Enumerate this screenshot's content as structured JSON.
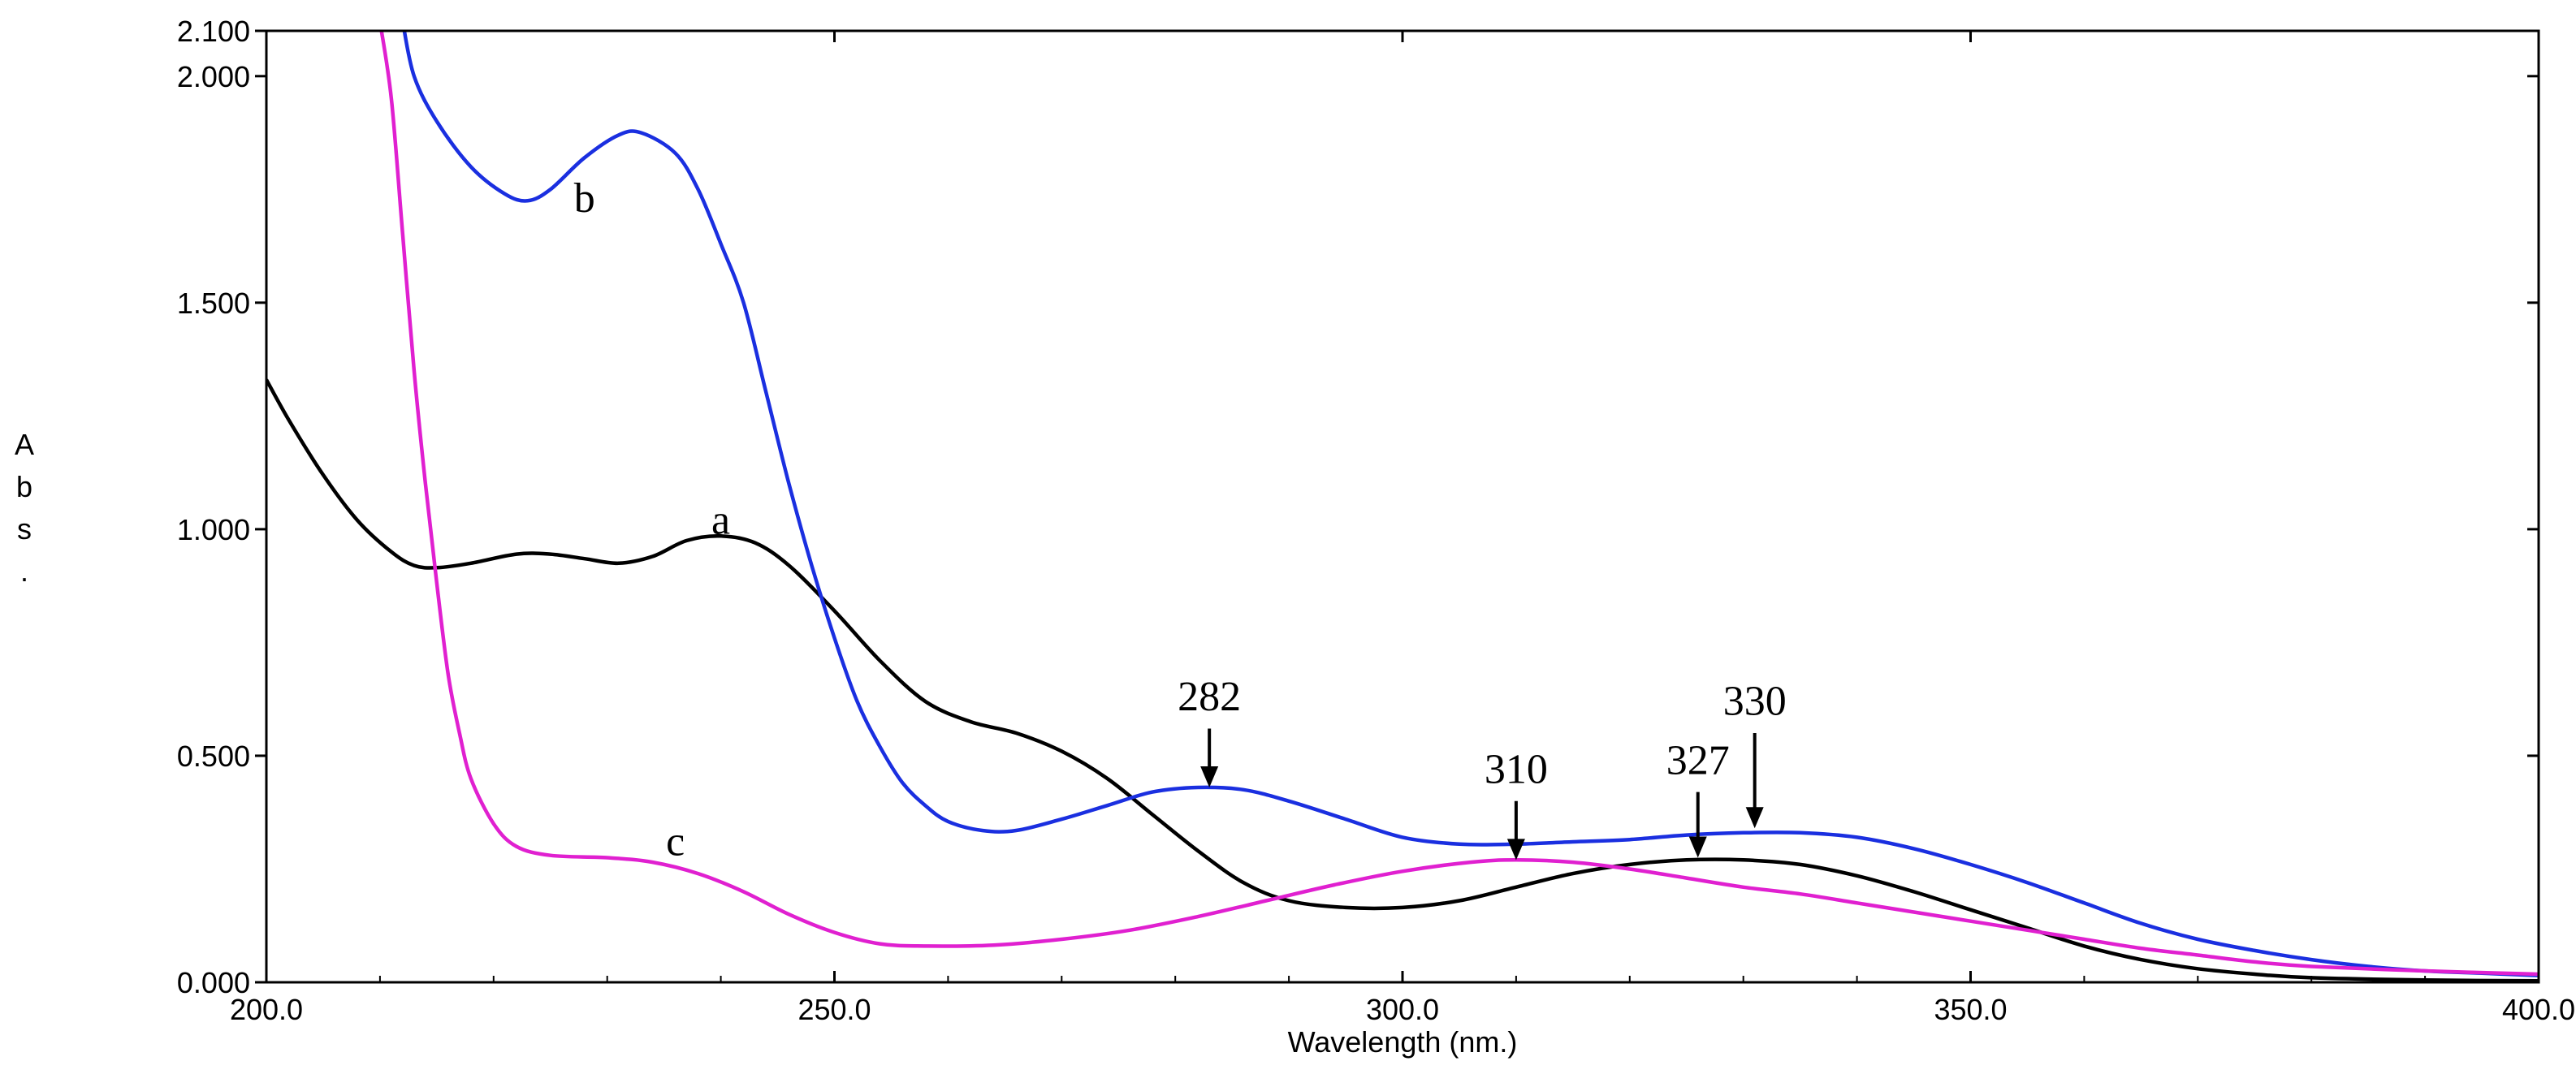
{
  "chart_data": {
    "type": "line",
    "xlabel": "Wavelength (nm.)",
    "ylabel": "Abs.",
    "xlim": [
      200,
      400
    ],
    "ylim": [
      0,
      2.1
    ],
    "x_ticks": [
      "200.0",
      "250.0",
      "300.0",
      "350.0",
      "400.0"
    ],
    "y_ticks": [
      "0.000",
      "0.500",
      "1.000",
      "1.500",
      "2.000",
      "2.100"
    ],
    "series": [
      {
        "name": "a",
        "color": "#000000",
        "label_at": [
          240,
          0.99
        ],
        "points": [
          [
            200,
            1.33
          ],
          [
            202,
            1.24
          ],
          [
            205,
            1.12
          ],
          [
            208,
            1.02
          ],
          [
            211,
            0.95
          ],
          [
            213,
            0.92
          ],
          [
            215,
            0.915
          ],
          [
            218,
            0.925
          ],
          [
            222,
            0.945
          ],
          [
            225,
            0.945
          ],
          [
            228,
            0.935
          ],
          [
            231,
            0.925
          ],
          [
            234,
            0.94
          ],
          [
            237,
            0.975
          ],
          [
            240,
            0.985
          ],
          [
            243,
            0.97
          ],
          [
            246,
            0.92
          ],
          [
            250,
            0.82
          ],
          [
            254,
            0.71
          ],
          [
            258,
            0.62
          ],
          [
            262,
            0.575
          ],
          [
            266,
            0.55
          ],
          [
            270,
            0.51
          ],
          [
            274,
            0.45
          ],
          [
            278,
            0.37
          ],
          [
            282,
            0.29
          ],
          [
            286,
            0.22
          ],
          [
            290,
            0.18
          ],
          [
            295,
            0.165
          ],
          [
            300,
            0.165
          ],
          [
            305,
            0.18
          ],
          [
            310,
            0.21
          ],
          [
            315,
            0.24
          ],
          [
            320,
            0.26
          ],
          [
            325,
            0.27
          ],
          [
            330,
            0.27
          ],
          [
            335,
            0.26
          ],
          [
            340,
            0.235
          ],
          [
            345,
            0.2
          ],
          [
            350,
            0.16
          ],
          [
            355,
            0.12
          ],
          [
            360,
            0.08
          ],
          [
            365,
            0.05
          ],
          [
            370,
            0.03
          ],
          [
            375,
            0.018
          ],
          [
            380,
            0.01
          ],
          [
            390,
            0.005
          ],
          [
            400,
            0.003
          ]
        ]
      },
      {
        "name": "b",
        "color": "#1a2fe0",
        "label_at": [
          228,
          1.7
        ],
        "points": [
          [
            212,
            2.12
          ],
          [
            213,
            2.0
          ],
          [
            215,
            1.9
          ],
          [
            218,
            1.8
          ],
          [
            221,
            1.74
          ],
          [
            223,
            1.725
          ],
          [
            225,
            1.75
          ],
          [
            228,
            1.82
          ],
          [
            231,
            1.87
          ],
          [
            233,
            1.875
          ],
          [
            236,
            1.83
          ],
          [
            238,
            1.75
          ],
          [
            240,
            1.63
          ],
          [
            242,
            1.5
          ],
          [
            244,
            1.3
          ],
          [
            246,
            1.1
          ],
          [
            248,
            0.92
          ],
          [
            250,
            0.76
          ],
          [
            252,
            0.62
          ],
          [
            254,
            0.52
          ],
          [
            256,
            0.44
          ],
          [
            258,
            0.39
          ],
          [
            260,
            0.355
          ],
          [
            263,
            0.335
          ],
          [
            266,
            0.335
          ],
          [
            270,
            0.36
          ],
          [
            274,
            0.39
          ],
          [
            278,
            0.42
          ],
          [
            282,
            0.43
          ],
          [
            286,
            0.425
          ],
          [
            290,
            0.4
          ],
          [
            295,
            0.36
          ],
          [
            300,
            0.32
          ],
          [
            305,
            0.305
          ],
          [
            310,
            0.305
          ],
          [
            315,
            0.31
          ],
          [
            320,
            0.315
          ],
          [
            325,
            0.325
          ],
          [
            330,
            0.33
          ],
          [
            335,
            0.33
          ],
          [
            340,
            0.32
          ],
          [
            345,
            0.295
          ],
          [
            350,
            0.26
          ],
          [
            355,
            0.22
          ],
          [
            360,
            0.175
          ],
          [
            365,
            0.13
          ],
          [
            370,
            0.095
          ],
          [
            375,
            0.07
          ],
          [
            380,
            0.05
          ],
          [
            385,
            0.035
          ],
          [
            390,
            0.025
          ],
          [
            395,
            0.02
          ],
          [
            400,
            0.015
          ]
        ]
      },
      {
        "name": "c",
        "color": "#e020d0",
        "label_at": [
          236,
          0.28
        ],
        "points": [
          [
            210,
            2.12
          ],
          [
            211,
            1.95
          ],
          [
            212,
            1.65
          ],
          [
            213,
            1.35
          ],
          [
            214,
            1.1
          ],
          [
            215,
            0.88
          ],
          [
            216,
            0.68
          ],
          [
            217,
            0.55
          ],
          [
            218,
            0.45
          ],
          [
            220,
            0.35
          ],
          [
            222,
            0.3
          ],
          [
            225,
            0.28
          ],
          [
            230,
            0.275
          ],
          [
            234,
            0.265
          ],
          [
            238,
            0.24
          ],
          [
            242,
            0.2
          ],
          [
            246,
            0.15
          ],
          [
            250,
            0.11
          ],
          [
            254,
            0.085
          ],
          [
            258,
            0.08
          ],
          [
            264,
            0.082
          ],
          [
            270,
            0.095
          ],
          [
            276,
            0.115
          ],
          [
            282,
            0.145
          ],
          [
            288,
            0.18
          ],
          [
            294,
            0.215
          ],
          [
            300,
            0.245
          ],
          [
            306,
            0.265
          ],
          [
            310,
            0.27
          ],
          [
            315,
            0.265
          ],
          [
            320,
            0.25
          ],
          [
            325,
            0.23
          ],
          [
            330,
            0.21
          ],
          [
            335,
            0.195
          ],
          [
            340,
            0.175
          ],
          [
            345,
            0.155
          ],
          [
            350,
            0.135
          ],
          [
            355,
            0.115
          ],
          [
            360,
            0.095
          ],
          [
            365,
            0.075
          ],
          [
            370,
            0.06
          ],
          [
            375,
            0.045
          ],
          [
            380,
            0.035
          ],
          [
            390,
            0.025
          ],
          [
            400,
            0.018
          ]
        ]
      }
    ],
    "annotations": [
      {
        "text": "282",
        "x": 283,
        "y_tip": 0.43,
        "y_tail": 0.56,
        "y_text": 0.6
      },
      {
        "text": "310",
        "x": 310,
        "y_tip": 0.27,
        "y_tail": 0.4,
        "y_text": 0.44
      },
      {
        "text": "327",
        "x": 326,
        "y_tip": 0.275,
        "y_tail": 0.42,
        "y_text": 0.46
      },
      {
        "text": "330",
        "x": 331,
        "y_tip": 0.34,
        "y_tail": 0.55,
        "y_text": 0.59
      }
    ]
  }
}
